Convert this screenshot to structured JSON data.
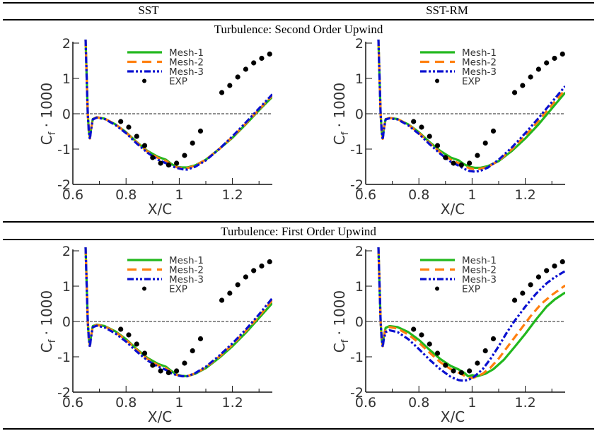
{
  "table": {
    "columns": [
      "SST",
      "SST-RM"
    ],
    "rows": [
      "Turbulence: Second Order Upwind",
      "Turbulence: First Order Upwind"
    ]
  },
  "chart_data": [
    {
      "id": "sst-second-order",
      "type": "line",
      "title": "SST — Turbulence: Second Order Upwind",
      "xlabel": "X/C",
      "ylabel": "Cf · 1000",
      "ylabel_main": "C",
      "ylabel_sub": "f",
      "ylabel_rest": " · 1000",
      "xlim": [
        0.6,
        1.35
      ],
      "ylim": [
        -2,
        2.1
      ],
      "xticks": [
        0.6,
        0.8,
        1,
        1.2
      ],
      "xtick_labels": [
        "0.6",
        "0.8",
        "1",
        "1.2"
      ],
      "yticks": [
        -2,
        -1,
        0,
        1,
        2
      ],
      "ytick_labels": [
        "-2",
        "-1",
        "0",
        "1",
        "2"
      ],
      "zero_line": true,
      "legend": "top-center",
      "series": [
        {
          "name": "Mesh-1",
          "color": "#22b81e",
          "style": "solid",
          "x": [
            0.648,
            0.652,
            0.656,
            0.66,
            0.664,
            0.668,
            0.675,
            0.69,
            0.72,
            0.76,
            0.8,
            0.84,
            0.88,
            0.92,
            0.95,
            0.97,
            0.99,
            1.01,
            1.03,
            1.06,
            1.1,
            1.15,
            1.2,
            1.25,
            1.3,
            1.35
          ],
          "y": [
            2.1,
            1.0,
            0.0,
            -0.5,
            -0.68,
            -0.45,
            -0.15,
            -0.1,
            -0.14,
            -0.3,
            -0.52,
            -0.8,
            -1.05,
            -1.22,
            -1.3,
            -1.42,
            -1.5,
            -1.52,
            -1.52,
            -1.46,
            -1.3,
            -1.0,
            -0.68,
            -0.3,
            0.1,
            0.48
          ]
        },
        {
          "name": "Mesh-2",
          "color": "#ff7f0e",
          "style": "dashed",
          "x": [
            0.648,
            0.652,
            0.656,
            0.66,
            0.664,
            0.668,
            0.675,
            0.69,
            0.72,
            0.76,
            0.8,
            0.84,
            0.88,
            0.92,
            0.95,
            0.97,
            0.99,
            1.01,
            1.03,
            1.06,
            1.1,
            1.15,
            1.2,
            1.25,
            1.3,
            1.35
          ],
          "y": [
            2.1,
            1.0,
            0.0,
            -0.5,
            -0.7,
            -0.45,
            -0.15,
            -0.1,
            -0.14,
            -0.3,
            -0.53,
            -0.81,
            -1.07,
            -1.25,
            -1.33,
            -1.44,
            -1.51,
            -1.54,
            -1.54,
            -1.47,
            -1.3,
            -1.0,
            -0.66,
            -0.28,
            0.12,
            0.52
          ]
        },
        {
          "name": "Mesh-3",
          "color": "#0a10d0",
          "style": "dashdotdot",
          "x": [
            0.648,
            0.652,
            0.656,
            0.66,
            0.664,
            0.668,
            0.675,
            0.69,
            0.72,
            0.76,
            0.8,
            0.84,
            0.88,
            0.92,
            0.95,
            0.97,
            0.99,
            1.01,
            1.03,
            1.06,
            1.1,
            1.15,
            1.2,
            1.25,
            1.3,
            1.35
          ],
          "y": [
            2.1,
            1.0,
            0.0,
            -0.5,
            -0.72,
            -0.47,
            -0.16,
            -0.11,
            -0.15,
            -0.32,
            -0.55,
            -0.84,
            -1.1,
            -1.3,
            -1.4,
            -1.48,
            -1.53,
            -1.57,
            -1.58,
            -1.5,
            -1.32,
            -1.0,
            -0.64,
            -0.25,
            0.15,
            0.55
          ]
        }
      ],
      "exp": {
        "name": "EXP",
        "color": "#000000",
        "x": [
          0.78,
          0.81,
          0.84,
          0.87,
          0.9,
          0.93,
          0.96,
          0.99,
          1.02,
          1.05,
          1.08,
          1.16,
          1.19,
          1.22,
          1.25,
          1.28,
          1.31,
          1.34
        ],
        "y": [
          -0.22,
          -0.38,
          -0.64,
          -0.9,
          -1.24,
          -1.4,
          -1.45,
          -1.4,
          -1.18,
          -0.83,
          -0.49,
          0.6,
          0.8,
          1.04,
          1.26,
          1.44,
          1.57,
          1.69
        ]
      }
    },
    {
      "id": "sstrm-second-order",
      "type": "line",
      "title": "SST-RM — Turbulence: Second Order Upwind",
      "xlabel": "X/C",
      "ylabel": "Cf · 1000",
      "ylabel_main": "C",
      "ylabel_sub": "f",
      "ylabel_rest": " · 1000",
      "xlim": [
        0.6,
        1.35
      ],
      "ylim": [
        -2,
        2.1
      ],
      "xticks": [
        0.6,
        0.8,
        1,
        1.2
      ],
      "xtick_labels": [
        "0.6",
        "0.8",
        "1",
        "1.2"
      ],
      "yticks": [
        -2,
        -1,
        0,
        1,
        2
      ],
      "ytick_labels": [
        "-2",
        "-1",
        "0",
        "1",
        "2"
      ],
      "zero_line": true,
      "legend": "top-center",
      "series": [
        {
          "name": "Mesh-1",
          "color": "#22b81e",
          "style": "solid",
          "x": [
            0.648,
            0.652,
            0.656,
            0.66,
            0.664,
            0.668,
            0.675,
            0.69,
            0.72,
            0.76,
            0.8,
            0.84,
            0.88,
            0.92,
            0.95,
            0.97,
            0.99,
            1.01,
            1.03,
            1.06,
            1.1,
            1.15,
            1.2,
            1.25,
            1.3,
            1.35
          ],
          "y": [
            2.1,
            1.0,
            0.0,
            -0.5,
            -0.7,
            -0.42,
            -0.15,
            -0.12,
            -0.15,
            -0.3,
            -0.52,
            -0.8,
            -1.05,
            -1.24,
            -1.32,
            -1.43,
            -1.5,
            -1.53,
            -1.53,
            -1.48,
            -1.34,
            -1.05,
            -0.7,
            -0.3,
            0.15,
            0.6
          ]
        },
        {
          "name": "Mesh-2",
          "color": "#ff7f0e",
          "style": "dashed",
          "x": [
            0.648,
            0.652,
            0.656,
            0.66,
            0.664,
            0.668,
            0.675,
            0.69,
            0.72,
            0.76,
            0.8,
            0.84,
            0.88,
            0.92,
            0.95,
            0.97,
            0.99,
            1.01,
            1.03,
            1.06,
            1.1,
            1.15,
            1.2,
            1.25,
            1.3,
            1.35
          ],
          "y": [
            2.1,
            1.0,
            0.0,
            -0.5,
            -0.71,
            -0.44,
            -0.15,
            -0.12,
            -0.15,
            -0.31,
            -0.54,
            -0.83,
            -1.09,
            -1.3,
            -1.4,
            -1.48,
            -1.54,
            -1.57,
            -1.56,
            -1.5,
            -1.33,
            -1.0,
            -0.62,
            -0.2,
            0.25,
            0.68
          ]
        },
        {
          "name": "Mesh-3",
          "color": "#0a10d0",
          "style": "dashdotdot",
          "x": [
            0.648,
            0.652,
            0.656,
            0.66,
            0.664,
            0.668,
            0.675,
            0.69,
            0.72,
            0.76,
            0.8,
            0.84,
            0.88,
            0.92,
            0.95,
            0.97,
            0.99,
            1.01,
            1.03,
            1.06,
            1.1,
            1.15,
            1.2,
            1.25,
            1.3,
            1.35
          ],
          "y": [
            2.1,
            1.0,
            0.0,
            -0.5,
            -0.73,
            -0.46,
            -0.16,
            -0.13,
            -0.16,
            -0.33,
            -0.57,
            -0.86,
            -1.13,
            -1.36,
            -1.47,
            -1.56,
            -1.62,
            -1.64,
            -1.62,
            -1.52,
            -1.3,
            -0.95,
            -0.55,
            -0.12,
            0.33,
            0.78
          ]
        }
      ],
      "exp": {
        "name": "EXP",
        "color": "#000000",
        "x": [
          0.78,
          0.81,
          0.84,
          0.87,
          0.9,
          0.93,
          0.96,
          0.99,
          1.02,
          1.05,
          1.08,
          1.16,
          1.19,
          1.22,
          1.25,
          1.28,
          1.31,
          1.34
        ],
        "y": [
          -0.22,
          -0.38,
          -0.64,
          -0.9,
          -1.24,
          -1.4,
          -1.45,
          -1.4,
          -1.18,
          -0.83,
          -0.49,
          0.6,
          0.8,
          1.04,
          1.26,
          1.44,
          1.57,
          1.69
        ]
      }
    },
    {
      "id": "sst-first-order",
      "type": "line",
      "title": "SST — Turbulence: First Order Upwind",
      "xlabel": "X/C",
      "ylabel": "Cf · 1000",
      "ylabel_main": "C",
      "ylabel_sub": "f",
      "ylabel_rest": " · 1000",
      "xlim": [
        0.6,
        1.35
      ],
      "ylim": [
        -2,
        2.1
      ],
      "xticks": [
        0.6,
        0.8,
        1,
        1.2
      ],
      "xtick_labels": [
        "0.6",
        "0.8",
        "1",
        "1.2"
      ],
      "yticks": [
        -2,
        -1,
        0,
        1,
        2
      ],
      "ytick_labels": [
        "-2",
        "-1",
        "0",
        "1",
        "2"
      ],
      "zero_line": true,
      "legend": "top-center",
      "series": [
        {
          "name": "Mesh-1",
          "color": "#22b81e",
          "style": "solid",
          "x": [
            0.648,
            0.652,
            0.656,
            0.66,
            0.664,
            0.668,
            0.675,
            0.69,
            0.72,
            0.76,
            0.8,
            0.84,
            0.88,
            0.92,
            0.95,
            0.97,
            0.99,
            1.01,
            1.03,
            1.06,
            1.1,
            1.15,
            1.2,
            1.25,
            1.3,
            1.35
          ],
          "y": [
            2.1,
            1.0,
            0.0,
            -0.5,
            -0.68,
            -0.42,
            -0.13,
            -0.09,
            -0.13,
            -0.28,
            -0.5,
            -0.78,
            -1.03,
            -1.2,
            -1.28,
            -1.4,
            -1.5,
            -1.54,
            -1.55,
            -1.48,
            -1.32,
            -1.03,
            -0.7,
            -0.32,
            0.1,
            0.52
          ]
        },
        {
          "name": "Mesh-2",
          "color": "#ff7f0e",
          "style": "dashed",
          "x": [
            0.648,
            0.652,
            0.656,
            0.66,
            0.664,
            0.668,
            0.675,
            0.69,
            0.72,
            0.76,
            0.8,
            0.84,
            0.88,
            0.92,
            0.95,
            0.97,
            0.99,
            1.01,
            1.03,
            1.06,
            1.1,
            1.15,
            1.2,
            1.25,
            1.3,
            1.35
          ],
          "y": [
            2.1,
            1.0,
            0.0,
            -0.5,
            -0.69,
            -0.43,
            -0.14,
            -0.1,
            -0.14,
            -0.3,
            -0.52,
            -0.8,
            -1.06,
            -1.24,
            -1.32,
            -1.43,
            -1.51,
            -1.55,
            -1.55,
            -1.47,
            -1.3,
            -1.0,
            -0.66,
            -0.27,
            0.15,
            0.6
          ]
        },
        {
          "name": "Mesh-3",
          "color": "#0a10d0",
          "style": "dashdotdot",
          "x": [
            0.648,
            0.652,
            0.656,
            0.66,
            0.664,
            0.668,
            0.675,
            0.69,
            0.72,
            0.76,
            0.8,
            0.84,
            0.88,
            0.92,
            0.95,
            0.97,
            0.99,
            1.01,
            1.03,
            1.06,
            1.1,
            1.15,
            1.2,
            1.25,
            1.3,
            1.35
          ],
          "y": [
            2.1,
            1.0,
            0.0,
            -0.5,
            -0.72,
            -0.46,
            -0.16,
            -0.12,
            -0.17,
            -0.34,
            -0.57,
            -0.85,
            -1.1,
            -1.28,
            -1.37,
            -1.46,
            -1.52,
            -1.55,
            -1.55,
            -1.46,
            -1.28,
            -0.97,
            -0.62,
            -0.23,
            0.2,
            0.66
          ]
        }
      ],
      "exp": {
        "name": "EXP",
        "color": "#000000",
        "x": [
          0.78,
          0.81,
          0.84,
          0.87,
          0.9,
          0.93,
          0.96,
          0.99,
          1.02,
          1.05,
          1.08,
          1.16,
          1.19,
          1.22,
          1.25,
          1.28,
          1.31,
          1.34
        ],
        "y": [
          -0.22,
          -0.38,
          -0.64,
          -0.9,
          -1.24,
          -1.4,
          -1.45,
          -1.4,
          -1.18,
          -0.83,
          -0.49,
          0.6,
          0.8,
          1.04,
          1.26,
          1.44,
          1.57,
          1.69
        ]
      }
    },
    {
      "id": "sstrm-first-order",
      "type": "line",
      "title": "SST-RM — Turbulence: First Order Upwind",
      "xlabel": "X/C",
      "ylabel": "Cf · 1000",
      "ylabel_main": "C",
      "ylabel_sub": "f",
      "ylabel_rest": " · 1000",
      "xlim": [
        0.6,
        1.35
      ],
      "ylim": [
        -2,
        2.1
      ],
      "xticks": [
        0.6,
        0.8,
        1,
        1.2
      ],
      "xtick_labels": [
        "0.6",
        "0.8",
        "1",
        "1.2"
      ],
      "yticks": [
        -2,
        -1,
        0,
        1,
        2
      ],
      "ytick_labels": [
        "-2",
        "-1",
        "0",
        "1",
        "2"
      ],
      "zero_line": true,
      "legend": "top-center",
      "series": [
        {
          "name": "Mesh-1",
          "color": "#22b81e",
          "style": "solid",
          "x": [
            0.648,
            0.652,
            0.656,
            0.66,
            0.664,
            0.668,
            0.675,
            0.69,
            0.72,
            0.76,
            0.8,
            0.84,
            0.88,
            0.92,
            0.95,
            0.97,
            0.985,
            1.0,
            1.02,
            1.05,
            1.08,
            1.12,
            1.16,
            1.2,
            1.24,
            1.28,
            1.31,
            1.35
          ],
          "y": [
            2.1,
            1.0,
            0.0,
            -0.5,
            -0.68,
            -0.42,
            -0.18,
            -0.13,
            -0.16,
            -0.3,
            -0.52,
            -0.8,
            -1.06,
            -1.26,
            -1.36,
            -1.45,
            -1.55,
            -1.52,
            -1.55,
            -1.48,
            -1.35,
            -1.08,
            -0.72,
            -0.35,
            0.05,
            0.42,
            0.62,
            0.82
          ]
        },
        {
          "name": "Mesh-2",
          "color": "#ff7f0e",
          "style": "dashed",
          "x": [
            0.648,
            0.652,
            0.656,
            0.66,
            0.664,
            0.668,
            0.675,
            0.69,
            0.72,
            0.76,
            0.8,
            0.84,
            0.88,
            0.92,
            0.95,
            0.97,
            0.99,
            1.01,
            1.04,
            1.07,
            1.1,
            1.14,
            1.18,
            1.22,
            1.26,
            1.3,
            1.35
          ],
          "y": [
            2.1,
            1.0,
            0.0,
            -0.5,
            -0.7,
            -0.45,
            -0.2,
            -0.16,
            -0.2,
            -0.37,
            -0.6,
            -0.88,
            -1.15,
            -1.35,
            -1.45,
            -1.53,
            -1.6,
            -1.58,
            -1.48,
            -1.3,
            -1.05,
            -0.65,
            -0.25,
            0.15,
            0.5,
            0.75,
            1.02
          ]
        },
        {
          "name": "Mesh-3",
          "color": "#0a10d0",
          "style": "dashdotdot",
          "x": [
            0.648,
            0.652,
            0.656,
            0.66,
            0.664,
            0.668,
            0.675,
            0.69,
            0.72,
            0.76,
            0.8,
            0.84,
            0.88,
            0.92,
            0.95,
            0.97,
            0.99,
            1.01,
            1.04,
            1.07,
            1.1,
            1.13,
            1.16,
            1.2,
            1.24,
            1.28,
            1.31,
            1.35
          ],
          "y": [
            2.1,
            1.0,
            0.0,
            -0.5,
            -0.72,
            -0.5,
            -0.3,
            -0.25,
            -0.3,
            -0.5,
            -0.78,
            -1.08,
            -1.35,
            -1.57,
            -1.66,
            -1.68,
            -1.64,
            -1.55,
            -1.35,
            -1.05,
            -0.7,
            -0.32,
            0.02,
            0.42,
            0.78,
            1.08,
            1.25,
            1.43
          ]
        }
      ],
      "exp": {
        "name": "EXP",
        "color": "#000000",
        "x": [
          0.78,
          0.81,
          0.84,
          0.87,
          0.9,
          0.93,
          0.96,
          0.99,
          1.02,
          1.05,
          1.08,
          1.16,
          1.19,
          1.22,
          1.25,
          1.28,
          1.31,
          1.34
        ],
        "y": [
          -0.22,
          -0.38,
          -0.64,
          -0.9,
          -1.24,
          -1.4,
          -1.45,
          -1.4,
          -1.18,
          -0.83,
          -0.49,
          0.6,
          0.8,
          1.04,
          1.26,
          1.44,
          1.57,
          1.69
        ]
      }
    }
  ]
}
